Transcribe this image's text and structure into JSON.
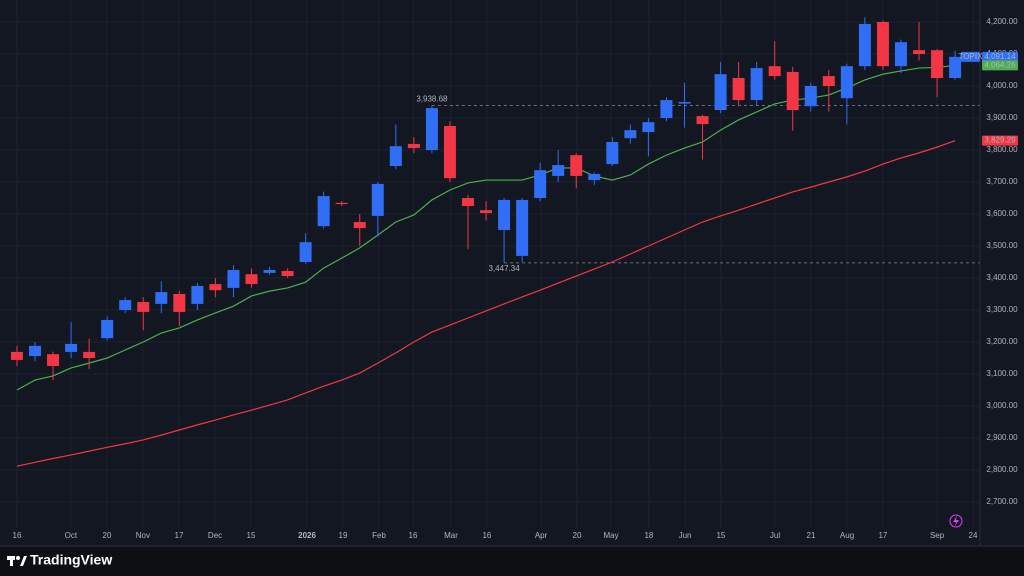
{
  "chart_data": {
    "type": "candlestick",
    "symbol": "TOPIX",
    "brand": "TradingView",
    "up_color": "#2f6ef5",
    "down_color": "#f23645",
    "grid": true,
    "xlim": [
      -0.94,
      53.38
    ],
    "ylim": [
      2618.75,
      4268.75
    ],
    "xticks": [
      {
        "value": 0,
        "label": "16"
      },
      {
        "value": 2.99,
        "label": "Oct"
      },
      {
        "value": 4.99,
        "label": "20"
      },
      {
        "value": 6.98,
        "label": "Nov"
      },
      {
        "value": 8.98,
        "label": "17"
      },
      {
        "value": 10.98,
        "label": "Dec"
      },
      {
        "value": 12.97,
        "label": "15"
      },
      {
        "value": 16.08,
        "label": "2026"
      },
      {
        "value": 18.07,
        "label": "19"
      },
      {
        "value": 20.07,
        "label": "Feb"
      },
      {
        "value": 21.95,
        "label": "16"
      },
      {
        "value": 24.06,
        "label": "Mar"
      },
      {
        "value": 26.05,
        "label": "16"
      },
      {
        "value": 29.05,
        "label": "Apr"
      },
      {
        "value": 31.04,
        "label": "20"
      },
      {
        "value": 32.93,
        "label": "May"
      },
      {
        "value": 35.03,
        "label": "18"
      },
      {
        "value": 37.03,
        "label": "Jun"
      },
      {
        "value": 39.02,
        "label": "15"
      },
      {
        "value": 42.02,
        "label": "Jul"
      },
      {
        "value": 44.01,
        "label": "21"
      },
      {
        "value": 46.01,
        "label": "Aug"
      },
      {
        "value": 48.0,
        "label": "17"
      },
      {
        "value": 51.0,
        "label": "Sep"
      },
      {
        "value": 52.99,
        "label": "24"
      }
    ],
    "yticks": [
      {
        "value": 2700,
        "label": "2,700.00"
      },
      {
        "value": 2800,
        "label": "2,800.00"
      },
      {
        "value": 2900,
        "label": "2,900.00"
      },
      {
        "value": 3000,
        "label": "3,000.00"
      },
      {
        "value": 3100,
        "label": "3,100.00"
      },
      {
        "value": 3200,
        "label": "3,200.00"
      },
      {
        "value": 3300,
        "label": "3,300.00"
      },
      {
        "value": 3400,
        "label": "3,400.00"
      },
      {
        "value": 3500,
        "label": "3,500.00"
      },
      {
        "value": 3600,
        "label": "3,600.00"
      },
      {
        "value": 3700,
        "label": "3,700.00"
      },
      {
        "value": 3800,
        "label": "3,800.00"
      },
      {
        "value": 3900,
        "label": "3,900.00"
      },
      {
        "value": 4000,
        "label": "4,000.00"
      },
      {
        "value": 4100,
        "label": "4,100.00"
      },
      {
        "value": 4200,
        "label": "4,200.00"
      }
    ],
    "open": [
      3169,
      3156,
      3162,
      3169,
      3169,
      3212,
      3300,
      3325,
      3319,
      3350,
      3319,
      3381,
      3369,
      3412,
      3416,
      3422,
      3450,
      3562,
      3635,
      3575,
      3594,
      3750,
      3819,
      3800,
      3875,
      3650,
      3612,
      3550,
      3469,
      3650,
      3719,
      3784,
      3706,
      3756,
      3837,
      3856,
      3900,
      3945,
      3906,
      3925,
      4025,
      3956,
      4062,
      4044,
      3937,
      4031,
      3962,
      4062,
      4200,
      4062,
      4112,
      4112,
      4025
    ],
    "high": [
      3188,
      3200,
      3170,
      3262,
      3210,
      3280,
      3340,
      3340,
      3390,
      3360,
      3385,
      3400,
      3440,
      3430,
      3435,
      3430,
      3540,
      3670,
      3640,
      3600,
      3700,
      3880,
      3840,
      3938.68,
      3890,
      3660,
      3640,
      3650,
      3650,
      3760,
      3800,
      3790,
      3730,
      3840,
      3880,
      3900,
      3965,
      4010,
      3910,
      4075,
      4075,
      4075,
      4140,
      4060,
      4010,
      4050,
      4070,
      4215,
      4205,
      4145,
      4200,
      4115,
      4110
    ],
    "low": [
      3125,
      3140,
      3081,
      3150,
      3115,
      3205,
      3290,
      3237,
      3290,
      3250,
      3300,
      3340,
      3340,
      3370,
      3410,
      3400,
      3445,
      3555,
      3625,
      3500,
      3530,
      3740,
      3790,
      3790,
      3700,
      3490,
      3580,
      3447.34,
      3450,
      3640,
      3700,
      3680,
      3690,
      3750,
      3820,
      3780,
      3890,
      3870,
      3770,
      3915,
      3940,
      3940,
      4020,
      3860,
      3920,
      3920,
      3880,
      4050,
      4050,
      4040,
      4080,
      3965,
      4020
    ],
    "close": [
      3144,
      3188,
      3125,
      3194,
      3150,
      3269,
      3331,
      3294,
      3356,
      3294,
      3375,
      3362,
      3425,
      3381,
      3425,
      3406,
      3512,
      3656,
      3631,
      3556,
      3694,
      3812,
      3806,
      3931,
      3712,
      3625,
      3603,
      3644,
      3644,
      3737,
      3753,
      3719,
      3725,
      3825,
      3862,
      3887,
      3956,
      3950,
      3881,
      4037,
      3956,
      4056,
      4031,
      3925,
      4000,
      4000,
      4062,
      4194,
      4062,
      4137,
      4100,
      4025,
      4091.14
    ],
    "moving_averages": [
      {
        "color": "#4caf50",
        "values": [
          3050,
          3081,
          3094,
          3119,
          3134,
          3150,
          3175,
          3200,
          3228,
          3244,
          3269,
          3291,
          3312,
          3344,
          3359,
          3369,
          3387,
          3431,
          3462,
          3494,
          3534,
          3575,
          3597,
          3644,
          3675,
          3697,
          3706,
          3706,
          3706,
          3722,
          3744,
          3744,
          3719,
          3706,
          3722,
          3756,
          3784,
          3806,
          3825,
          3862,
          3894,
          3919,
          3944,
          3956,
          3962,
          3972,
          3994,
          4019,
          4037,
          4047,
          4056,
          4058,
          4064.26
        ]
      },
      {
        "color": "#f23645",
        "values": [
          2812,
          2824,
          2836,
          2847,
          2859,
          2871,
          2882,
          2894,
          2909,
          2925,
          2941,
          2956,
          2972,
          2987,
          3003,
          3019,
          3041,
          3062,
          3081,
          3103,
          3134,
          3166,
          3200,
          3231,
          3253,
          3275,
          3297,
          3319,
          3341,
          3362,
          3384,
          3406,
          3428,
          3450,
          3475,
          3500,
          3525,
          3550,
          3575,
          3594,
          3612,
          3631,
          3650,
          3669,
          3684,
          3700,
          3716,
          3734,
          3756,
          3775,
          3791,
          3809,
          3829.29
        ]
      }
    ],
    "annotations": [
      {
        "index": 23,
        "value": 3938.68,
        "label": "3,938.68",
        "color": "#5b9cf6"
      },
      {
        "index": 27,
        "value": 3447.34,
        "label": "3,447.34",
        "color": "#f77c80"
      }
    ],
    "price_tags": [
      {
        "value": 4091.14,
        "label": "4,091.14",
        "color": "#2f6ef5"
      },
      {
        "value": 4064.26,
        "label": "4,064.26",
        "color": "#4caf50"
      },
      {
        "value": 3829.29,
        "label": "3,829.29",
        "color": "#f23645"
      }
    ]
  }
}
